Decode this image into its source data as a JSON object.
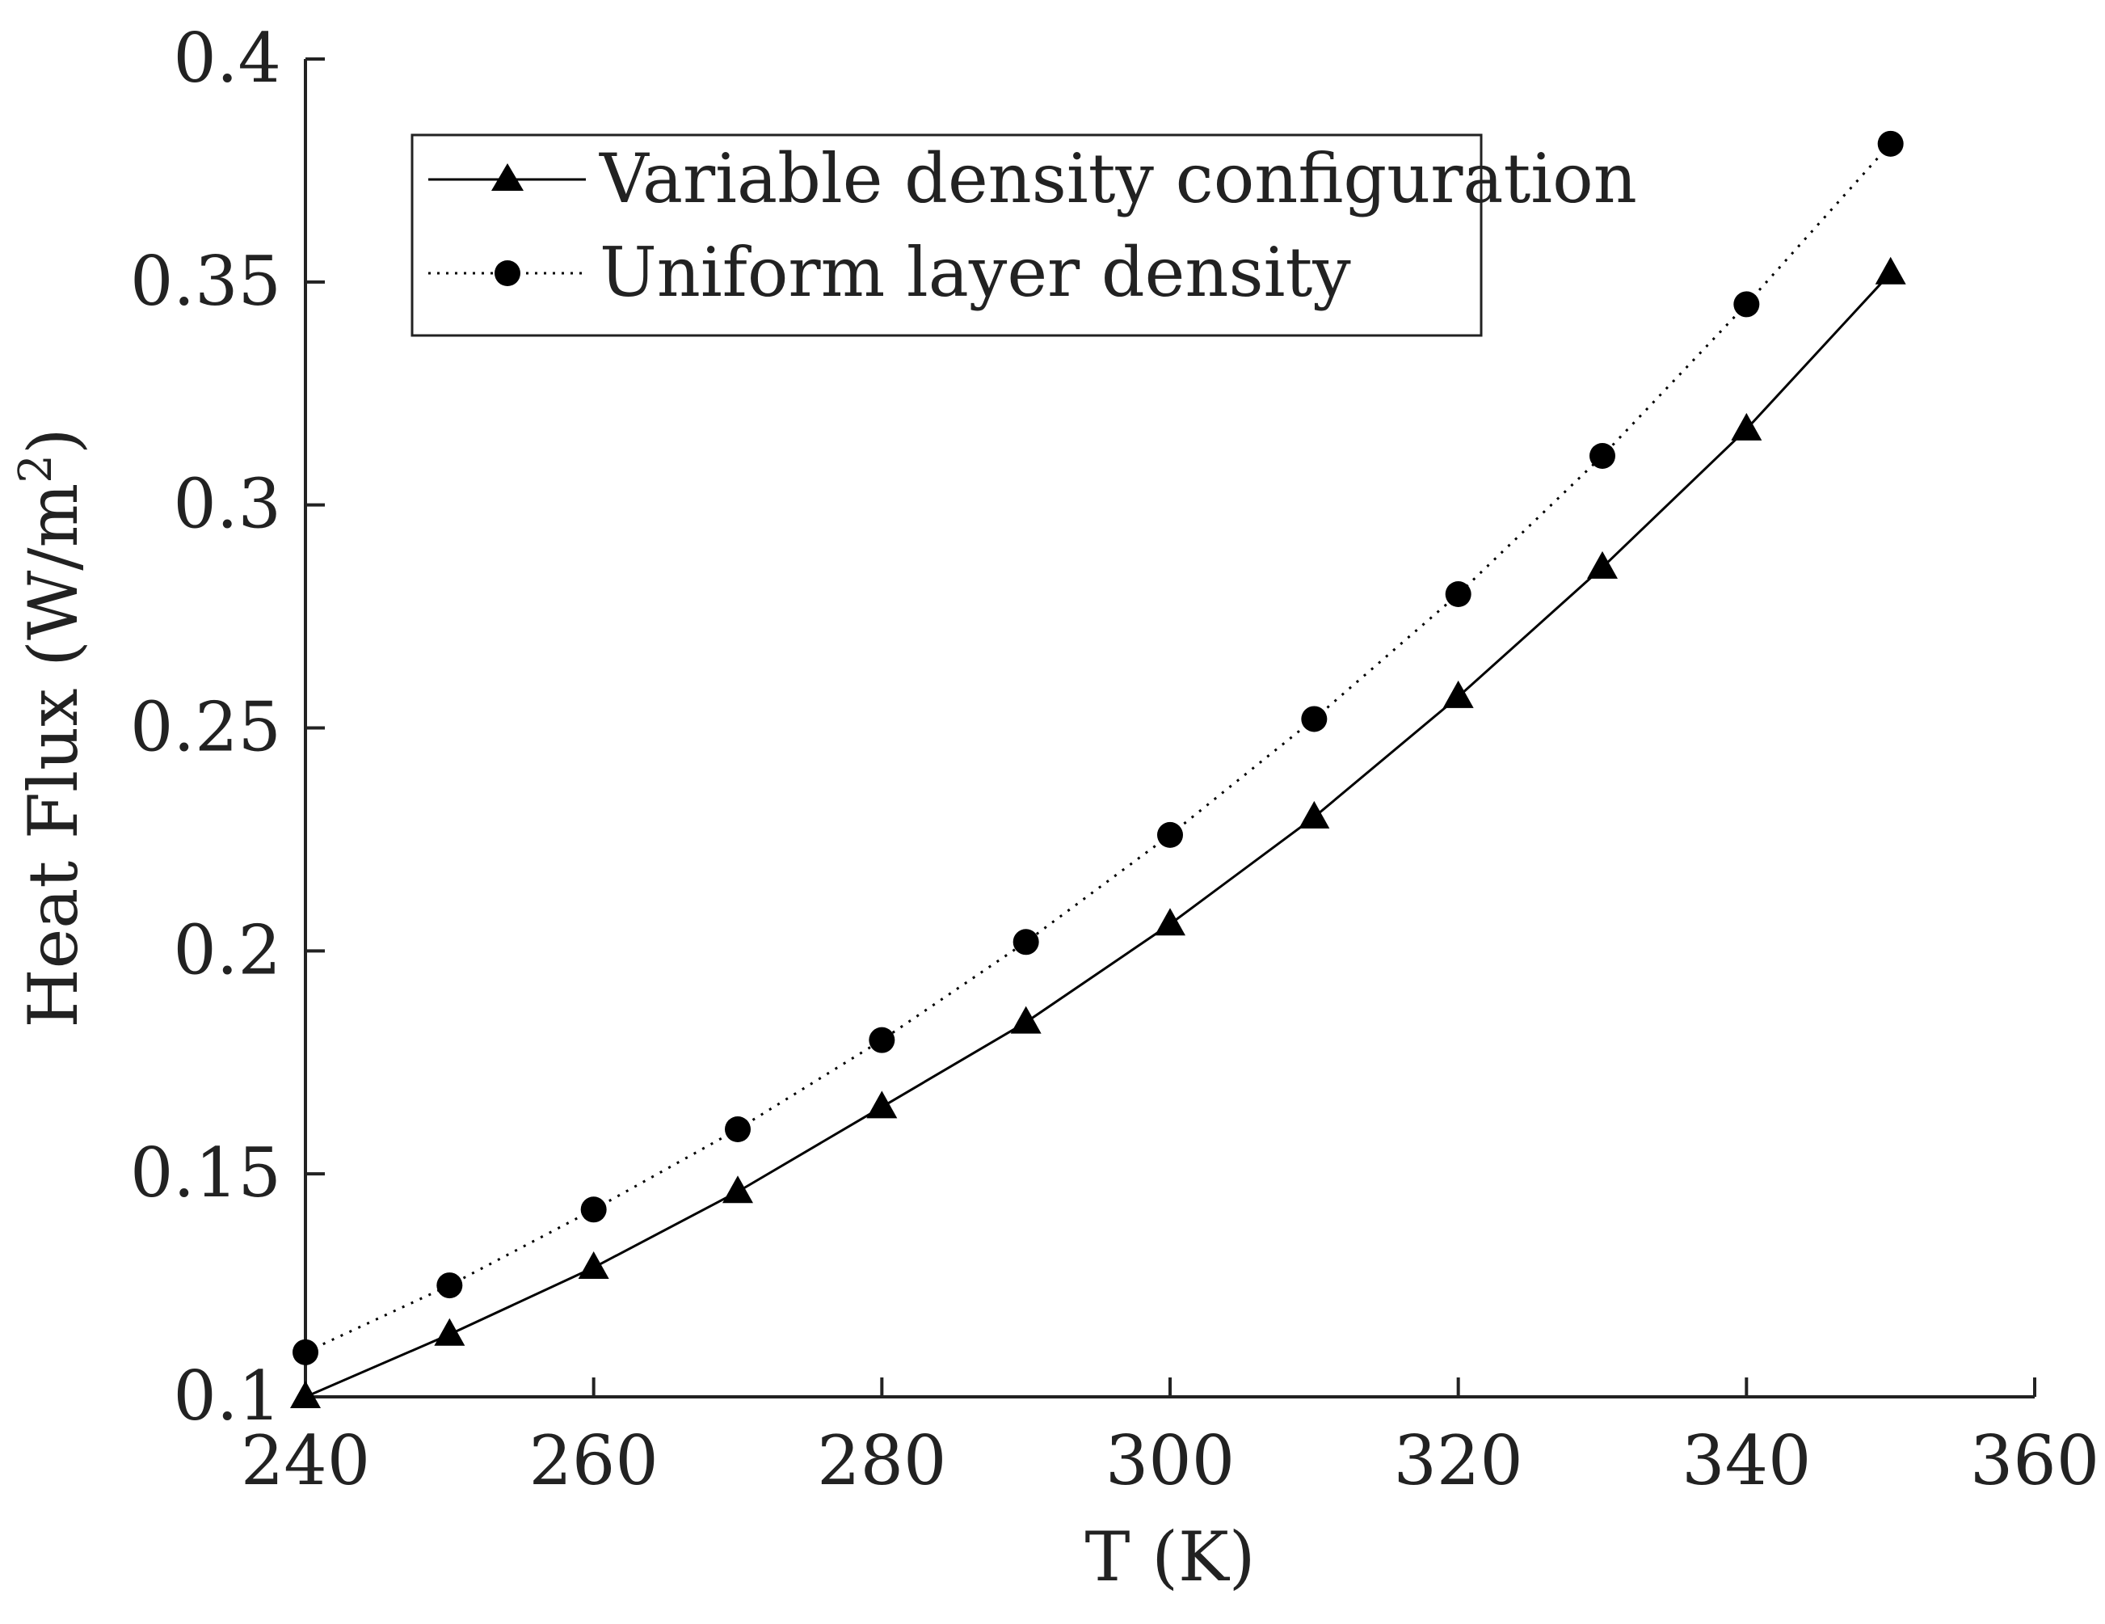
{
  "chart_data": {
    "type": "line",
    "title": "",
    "xlabel": "T (K)",
    "ylabel": "Heat Flux (W/m",
    "ylabel_superscript": "2",
    "ylabel_suffix": ")",
    "xlim": [
      240,
      360
    ],
    "ylim": [
      0.1,
      0.4
    ],
    "xticks": [
      240,
      260,
      280,
      300,
      320,
      340,
      360
    ],
    "xtick_labels": [
      "240",
      "260",
      "280",
      "300",
      "320",
      "340",
      "360"
    ],
    "yticks": [
      0.1,
      0.15,
      0.2,
      0.25,
      0.3,
      0.35,
      0.4
    ],
    "ytick_labels": [
      "0.1",
      "0.15",
      "0.2",
      "0.25",
      "0.3",
      "0.35",
      "0.4"
    ],
    "grid": false,
    "legend_position": "top-left",
    "x": [
      240,
      250,
      260,
      270,
      280,
      290,
      300,
      310,
      320,
      330,
      340,
      350
    ],
    "series": [
      {
        "name": "Variable density configuration",
        "line_style": "solid",
        "marker": "triangle",
        "color": "#000000",
        "values": [
          0.1,
          0.114,
          0.129,
          0.146,
          0.165,
          0.184,
          0.206,
          0.23,
          0.257,
          0.286,
          0.317,
          0.352
        ]
      },
      {
        "name": "Uniform layer density",
        "line_style": "dotted",
        "marker": "circle",
        "color": "#000000",
        "values": [
          0.11,
          0.125,
          0.142,
          0.16,
          0.18,
          0.202,
          0.226,
          0.252,
          0.28,
          0.311,
          0.345,
          0.381
        ]
      }
    ]
  }
}
